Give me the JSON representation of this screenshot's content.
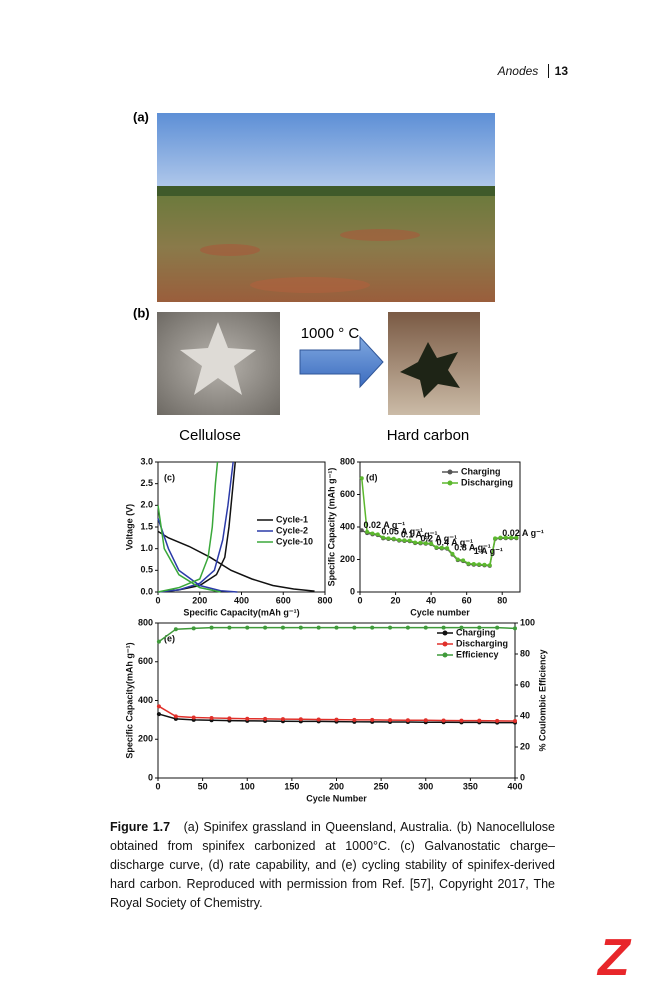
{
  "header": {
    "section": "Anodes",
    "page": "13"
  },
  "panels": {
    "a": "(a)",
    "b": "(b)"
  },
  "photo_b": {
    "arrow_label": "1000 ° C",
    "left_label": "Cellulose",
    "right_label": "Hard carbon"
  },
  "chart_data": [
    {
      "type": "line",
      "title": "(c)",
      "x_label": "Specific Capacity(mAh g⁻¹)",
      "y_label": "Voltage (V)",
      "xlim": [
        0,
        800
      ],
      "xticks": [
        0,
        200,
        400,
        600,
        800
      ],
      "ylim": [
        0,
        3.0
      ],
      "yticks": [
        {
          "value": 0,
          "label": "0.0"
        },
        0.5,
        {
          "value": 1,
          "label": "1.0"
        },
        1.5,
        {
          "value": 2,
          "label": "2.0"
        },
        2.5,
        {
          "value": 3,
          "label": "3.0"
        }
      ],
      "legend": "center right",
      "markers": false,
      "series": [
        {
          "name": "Cycle-1",
          "color": "#111111",
          "x": [
            0,
            50,
            150,
            250,
            350,
            450,
            550,
            650,
            750,
            null,
            0,
            100,
            200,
            280,
            320,
            340,
            360,
            370
          ],
          "values": [
            1.4,
            1.25,
            1.05,
            0.8,
            0.5,
            0.3,
            0.15,
            0.07,
            0.02,
            null,
            0,
            0.05,
            0.15,
            0.4,
            0.8,
            1.5,
            2.5,
            3.0
          ]
        },
        {
          "name": "Cycle-2",
          "color": "#2b3aa8",
          "x": [
            0,
            50,
            100,
            200,
            300,
            380,
            null,
            0,
            100,
            200,
            270,
            310,
            335,
            360
          ],
          "values": [
            1.7,
            1.0,
            0.5,
            0.15,
            0.03,
            0,
            null,
            0,
            0.05,
            0.2,
            0.5,
            1.2,
            2.0,
            3.0
          ]
        },
        {
          "name": "Cycle-10",
          "color": "#3aa83a",
          "x": [
            0,
            30,
            100,
            200,
            300,
            null,
            0,
            100,
            200,
            240,
            260,
            275,
            285
          ],
          "values": [
            2.0,
            1.0,
            0.4,
            0.1,
            0,
            null,
            0,
            0.1,
            0.3,
            0.8,
            1.5,
            2.5,
            3.0
          ]
        }
      ]
    },
    {
      "type": "line",
      "title": "(d)",
      "x_label": "Cycle number",
      "y_label": "Specific Capacity (mAh g⁻¹)",
      "xlim": [
        0,
        90
      ],
      "xticks": [
        0,
        20,
        40,
        60,
        80
      ],
      "ylim": [
        0,
        800
      ],
      "yticks": [
        0,
        200,
        400,
        600,
        800
      ],
      "legend": "upper right",
      "markers": true,
      "annotations": [
        "0.02 A g⁻¹",
        "0.05 A g⁻¹",
        "0.1 A g⁻¹",
        "0.2 A g⁻¹",
        "0.4 A g⁻¹",
        "0.8 A g⁻¹",
        "1 A g⁻¹",
        "0.02 A g⁻¹"
      ],
      "series": [
        {
          "name": "Charging",
          "color": "#555555",
          "x": [
            1,
            4,
            7,
            10,
            13,
            16,
            19,
            22,
            25,
            28,
            31,
            34,
            37,
            40,
            43,
            46,
            49,
            52,
            55,
            58,
            61,
            64,
            67,
            70,
            73,
            76,
            79,
            82,
            85,
            88
          ],
          "values": [
            380,
            362,
            355,
            350,
            330,
            326,
            324,
            316,
            314,
            312,
            301,
            299,
            297,
            295,
            271,
            268,
            266,
            230,
            196,
            190,
            171,
            168,
            166,
            164,
            161,
            326,
            331,
            331,
            331,
            331
          ]
        },
        {
          "name": "Discharging",
          "color": "#5cb82e",
          "x": [
            1,
            4,
            7,
            10,
            13,
            16,
            19,
            22,
            25,
            28,
            31,
            34,
            37,
            40,
            43,
            46,
            49,
            52,
            55,
            58,
            61,
            64,
            67,
            70,
            73,
            76,
            79,
            82,
            85,
            88
          ],
          "values": [
            700,
            370,
            360,
            355,
            335,
            330,
            328,
            320,
            318,
            316,
            305,
            303,
            300,
            298,
            275,
            272,
            270,
            235,
            200,
            195,
            175,
            172,
            170,
            168,
            165,
            330,
            335,
            335,
            335,
            335
          ]
        }
      ]
    },
    {
      "type": "line",
      "title": "(e)",
      "x_label": "Cycle Number",
      "y_label": "Specific Capacity(mAh g⁻¹)",
      "y2_label": "% Coulombic Efficiency",
      "xlim": [
        0,
        400
      ],
      "xticks": [
        0,
        50,
        100,
        150,
        200,
        250,
        300,
        350,
        400
      ],
      "ylim": [
        0,
        800
      ],
      "yticks": [
        0,
        200,
        400,
        600,
        800
      ],
      "y2lim": [
        0,
        100
      ],
      "y2ticks": [
        0,
        20,
        40,
        60,
        80,
        100
      ],
      "legend": "upper right",
      "markers": true,
      "series": [
        {
          "name": "Charging",
          "color": "#111111",
          "x": [
            1,
            20,
            40,
            60,
            80,
            100,
            120,
            140,
            160,
            180,
            200,
            220,
            240,
            260,
            280,
            300,
            320,
            340,
            360,
            380,
            400
          ],
          "values": [
            330,
            305,
            300,
            298,
            296,
            295,
            294,
            293,
            292,
            292,
            291,
            290,
            290,
            289,
            289,
            288,
            288,
            287,
            287,
            286,
            286
          ]
        },
        {
          "name": "Discharging",
          "color": "#e0302a",
          "x": [
            1,
            20,
            40,
            60,
            80,
            100,
            120,
            140,
            160,
            180,
            200,
            220,
            240,
            260,
            280,
            300,
            320,
            340,
            360,
            380,
            400
          ],
          "values": [
            370,
            318,
            312,
            310,
            308,
            306,
            305,
            304,
            303,
            302,
            301,
            300,
            300,
            299,
            298,
            298,
            297,
            296,
            296,
            295,
            294
          ]
        },
        {
          "name": "Efficiency",
          "color": "#3f9a3a",
          "axis": "y2",
          "x": [
            1,
            20,
            40,
            60,
            80,
            100,
            120,
            140,
            160,
            180,
            200,
            220,
            240,
            260,
            280,
            300,
            320,
            340,
            360,
            380,
            400
          ],
          "values": [
            88,
            96,
            96.5,
            97,
            97,
            97,
            97,
            97,
            97,
            97,
            97,
            97,
            97,
            97,
            97,
            97,
            97,
            97,
            97,
            97,
            96.5
          ]
        }
      ]
    }
  ],
  "caption": {
    "label": "Figure 1.7",
    "text": "(a) Spinifex grassland in Queensland, Australia. (b) Nanocellulose obtained from spinifex carbonized at 1000°C. (c) Galvanostatic charge–discharge curve, (d) rate capability, and (e) cycling stability of spinifex-derived hard carbon. Reproduced with permission from Ref. [57], Copyright 2017, The Royal Society of Chemistry."
  },
  "logo": "Z"
}
